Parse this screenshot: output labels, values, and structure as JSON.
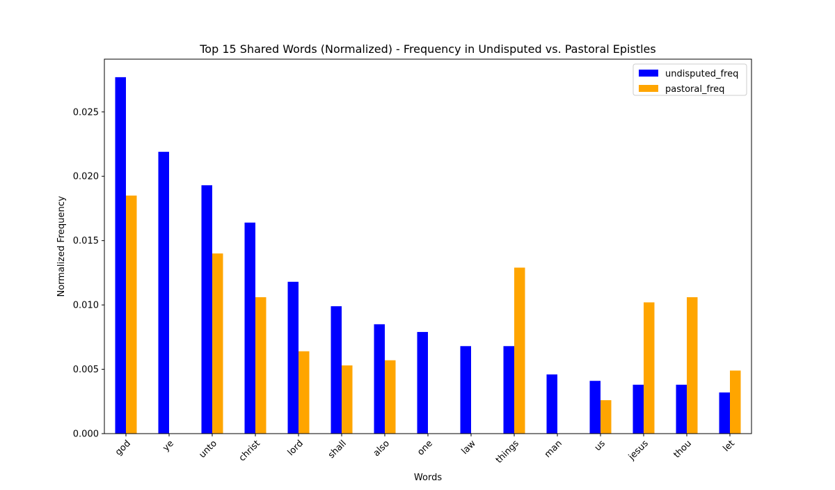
{
  "chart_data": {
    "type": "bar",
    "title": "Top 15 Shared Words (Normalized) - Frequency in Undisputed vs. Pastoral Epistles",
    "xlabel": "Words",
    "ylabel": "Normalized Frequency",
    "categories": [
      "god",
      "ye",
      "unto",
      "christ",
      "lord",
      "shall",
      "also",
      "one",
      "law",
      "things",
      "man",
      "us",
      "jesus",
      "thou",
      "let"
    ],
    "series": [
      {
        "name": "undisputed_freq",
        "color": "#0000ff",
        "values": [
          0.0277,
          0.0219,
          0.0193,
          0.0164,
          0.0118,
          0.0099,
          0.0085,
          0.0079,
          0.0068,
          0.0068,
          0.0046,
          0.0041,
          0.0038,
          0.0038,
          0.0032
        ]
      },
      {
        "name": "pastoral_freq",
        "color": "#ffa500",
        "values": [
          0.0185,
          0.0,
          0.014,
          0.0106,
          0.0064,
          0.0053,
          0.0057,
          0.0,
          0.0,
          0.0129,
          0.0,
          0.0026,
          0.0102,
          0.0106,
          0.0049
        ]
      }
    ],
    "ylim": [
      0,
      0.0291
    ],
    "yticks": [
      0.0,
      0.005,
      0.01,
      0.015,
      0.02,
      0.025
    ],
    "ytick_labels": [
      "0.000",
      "0.005",
      "0.010",
      "0.015",
      "0.020",
      "0.025"
    ],
    "legend_position": "top-right",
    "grid": false
  }
}
